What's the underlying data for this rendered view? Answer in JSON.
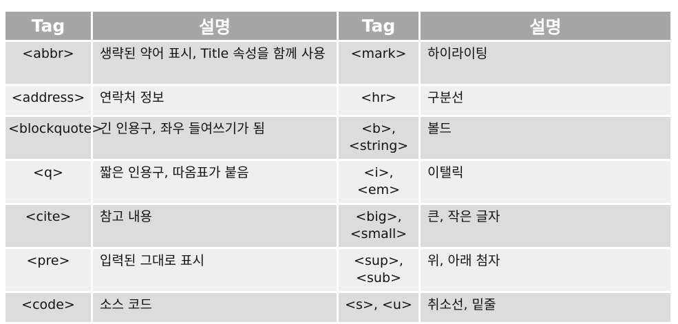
{
  "header": {
    "col1": "Tag",
    "col2": "설명",
    "col3": "Tag",
    "col4": "설명"
  },
  "rows": [
    {
      "tag1": "<abbr>",
      "desc1": "생략된 약어 표시, Title 속성을 함께 사용",
      "tag2": "<mark>",
      "desc2": "하이라이팅"
    },
    {
      "tag1": "<address>",
      "desc1": "연락처 정보",
      "tag2": "<hr>",
      "desc2": "구분선"
    },
    {
      "tag1": "<blockquote>",
      "desc1": "긴 인용구, 좌우 들여쓰기가 됨",
      "tag2": "<b>, <string>",
      "desc2": "볼드"
    },
    {
      "tag1": "<q>",
      "desc1": "짧은 인용구, 따옴표가 붙음",
      "tag2": "<i>, <em>",
      "desc2": "이탤릭"
    },
    {
      "tag1": "<cite>",
      "desc1": "참고 내용",
      "tag2": "<big>, <small>",
      "desc2": "큰, 작은 글자"
    },
    {
      "tag1": "<pre>",
      "desc1": "입력된 그대로 표시",
      "tag2": "<sup>, <sub>",
      "desc2": "위, 아래 첨자"
    },
    {
      "tag1": "<code>",
      "desc1": "소스 코드",
      "tag2": "<s>, <u>",
      "desc2": "취소선, 밑줄"
    }
  ],
  "colors": {
    "header_bg": "#a6a6a6",
    "row_dark": "#dcdcdc",
    "row_light": "#efefef"
  }
}
